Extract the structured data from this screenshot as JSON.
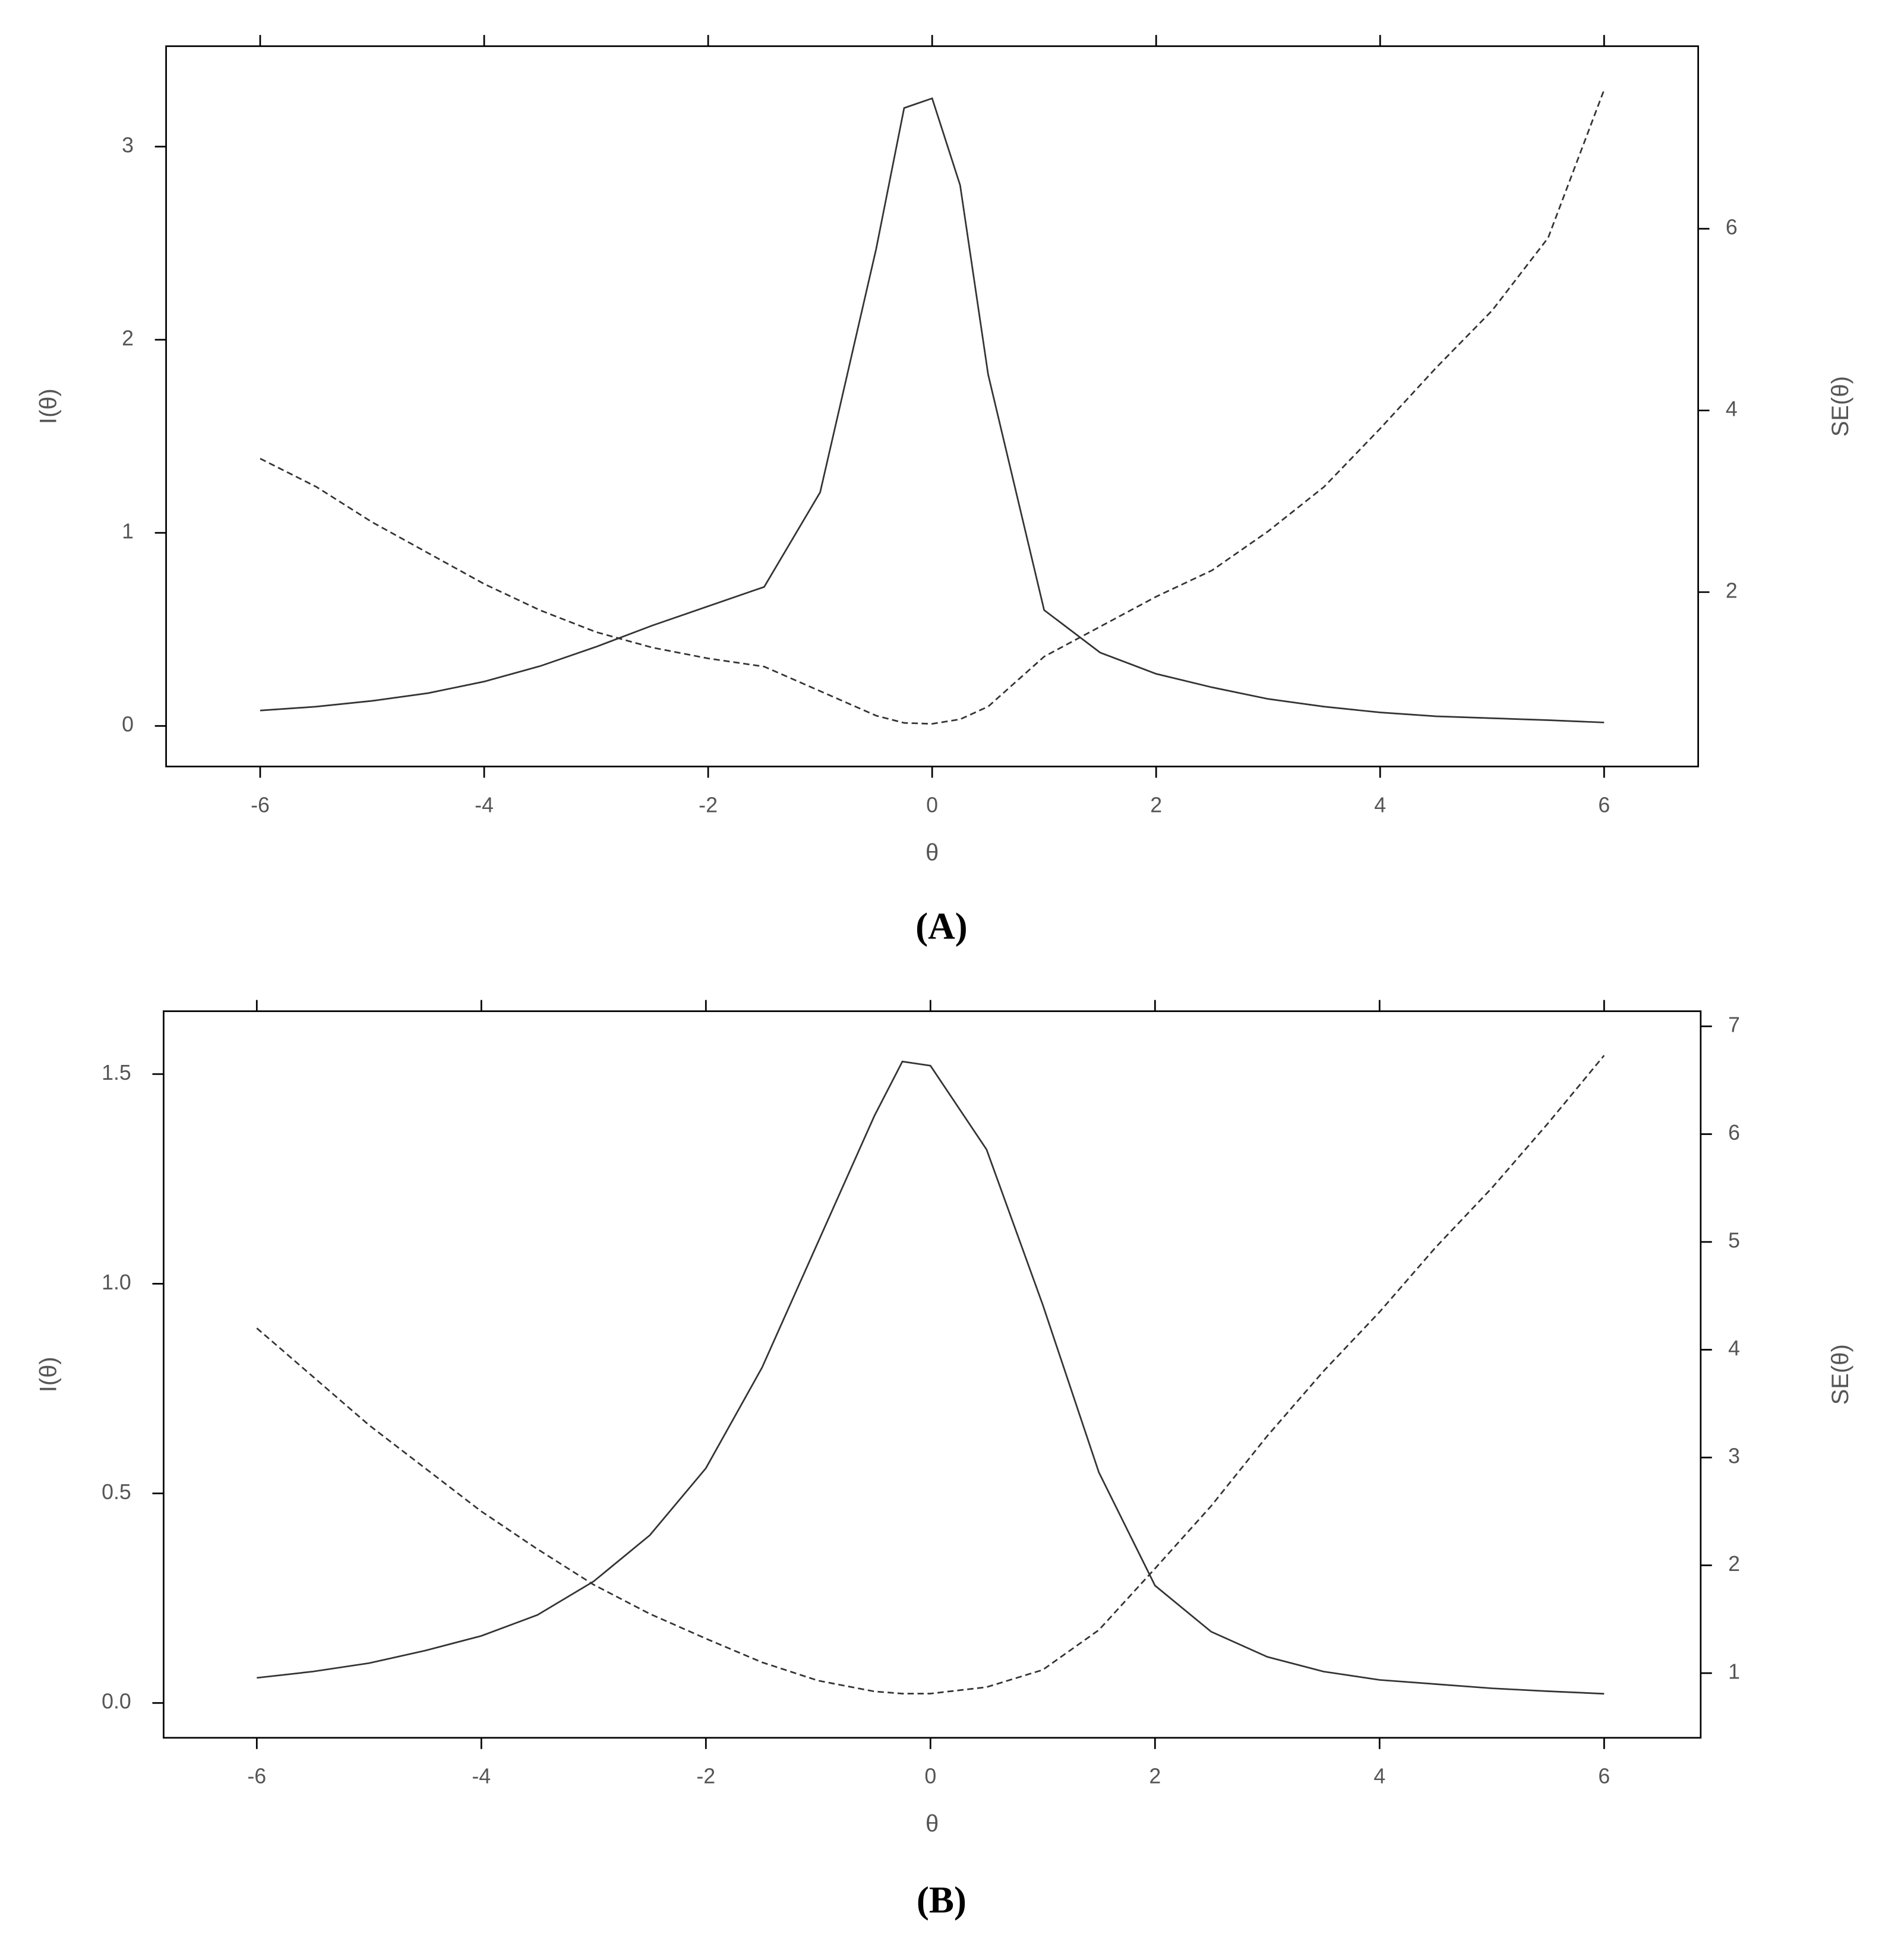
{
  "chart_data": [
    {
      "type": "line",
      "xlabel": "θ",
      "ylabel": "I(θ)",
      "y2label": "SE(θ)",
      "caption": "(A)",
      "x": [
        -6,
        -5.5,
        -5,
        -4.5,
        -4,
        -3.5,
        -3,
        -2.5,
        -2,
        -1.5,
        -1,
        -0.5,
        -0.25,
        0,
        0.25,
        0.5,
        1,
        1.5,
        2,
        2.5,
        3,
        3.5,
        4,
        4.5,
        5,
        5.5,
        6
      ],
      "series": [
        {
          "color": "#333333",
          "dashed": false,
          "values": [
            0.08,
            0.1,
            0.13,
            0.17,
            0.23,
            0.31,
            0.41,
            0.52,
            0.62,
            0.72,
            1.21,
            2.47,
            3.2,
            3.25,
            2.8,
            1.82,
            0.6,
            0.38,
            0.27,
            0.2,
            0.14,
            0.1,
            0.07,
            0.05,
            0.04,
            0.03,
            0.018
          ]
        },
        {
          "color": "#333333",
          "dashed": true,
          "axis": "y2",
          "values": [
            3.47,
            3.16,
            2.77,
            2.43,
            2.09,
            1.8,
            1.56,
            1.39,
            1.27,
            1.18,
            0.91,
            0.64,
            0.56,
            0.55,
            0.6,
            0.74,
            1.29,
            1.62,
            1.95,
            2.24,
            2.67,
            3.16,
            3.8,
            4.47,
            5.1,
            5.9,
            7.53
          ]
        }
      ],
      "xlim": [
        -6.84,
        6.84
      ],
      "xticks": [
        -6,
        -4,
        -2,
        0,
        2,
        4,
        6
      ],
      "ylim": [
        -0.21,
        3.52
      ],
      "yticks": [
        0,
        1,
        2,
        3
      ],
      "y2lim": [
        0.08,
        8.01
      ],
      "y2ticks": [
        2,
        4,
        6
      ]
    },
    {
      "type": "line",
      "xlabel": "θ",
      "ylabel": "I(θ)",
      "y2label": "SE(θ)",
      "caption": "(B)",
      "x": [
        -6,
        -5.5,
        -5,
        -4.5,
        -4,
        -3.5,
        -3,
        -2.5,
        -2,
        -1.5,
        -1,
        -0.5,
        -0.25,
        0,
        0.5,
        1,
        1.5,
        2,
        2.5,
        3,
        3.5,
        4,
        4.5,
        5,
        5.5,
        6
      ],
      "series": [
        {
          "color": "#333333",
          "dashed": false,
          "values": [
            0.06,
            0.075,
            0.095,
            0.125,
            0.16,
            0.21,
            0.29,
            0.4,
            0.56,
            0.8,
            1.1,
            1.4,
            1.53,
            1.52,
            1.32,
            0.95,
            0.55,
            0.28,
            0.17,
            0.11,
            0.075,
            0.055,
            0.045,
            0.035,
            0.028,
            0.022
          ]
        },
        {
          "color": "#333333",
          "dashed": true,
          "axis": "y2",
          "values": [
            4.2,
            3.75,
            3.3,
            2.9,
            2.5,
            2.15,
            1.82,
            1.55,
            1.32,
            1.1,
            0.93,
            0.83,
            0.81,
            0.81,
            0.87,
            1.03,
            1.4,
            1.97,
            2.55,
            3.2,
            3.8,
            4.35,
            4.95,
            5.5,
            6.1,
            6.73
          ]
        }
      ],
      "xlim": [
        -6.83,
        6.86
      ],
      "xticks": [
        -6,
        -4,
        -2,
        0,
        2,
        4,
        6
      ],
      "ylim": [
        -0.083,
        1.65
      ],
      "yticks": [
        {
          "value": 0,
          "label": "0.0"
        },
        {
          "value": 0.5,
          "label": "0.5"
        },
        {
          "value": 1,
          "label": "1.0"
        },
        {
          "value": 1.5,
          "label": "1.5"
        }
      ],
      "y2lim": [
        0.4,
        7.14
      ],
      "y2ticks": [
        1,
        2,
        3,
        4,
        5,
        6,
        7
      ]
    }
  ]
}
